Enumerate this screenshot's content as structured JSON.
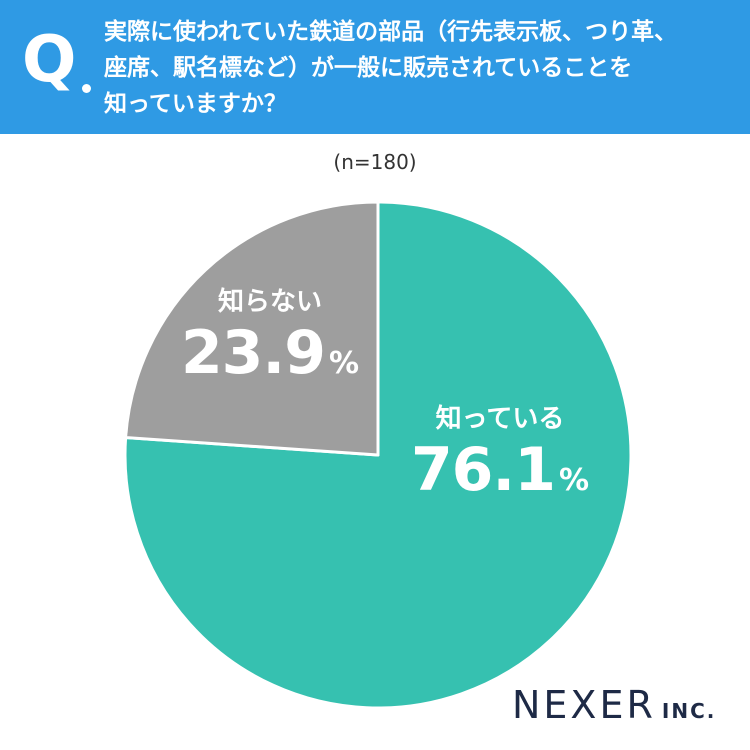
{
  "question": {
    "marker": "Q",
    "text": "実際に使われていた鉄道の部品（行先表示板、つり革、\n座席、駅名標など）が一般に販売されていることを\n知っていますか？"
  },
  "sample_size": "(n=180)",
  "chart_data": {
    "type": "pie",
    "title": "",
    "slices": [
      {
        "label": "知っている",
        "value": 76.1,
        "display": "76.1",
        "unit": "%",
        "color": "#36c1b0"
      },
      {
        "label": "知らない",
        "value": 23.9,
        "display": "23.9",
        "unit": "%",
        "color": "#9e9e9e"
      }
    ],
    "start": "12 o'clock",
    "direction": "clockwise"
  },
  "logo": {
    "main": "NEXER",
    "sub": "INC."
  },
  "colors": {
    "header": "#2f9ae4",
    "brand": "#1e2a46"
  }
}
